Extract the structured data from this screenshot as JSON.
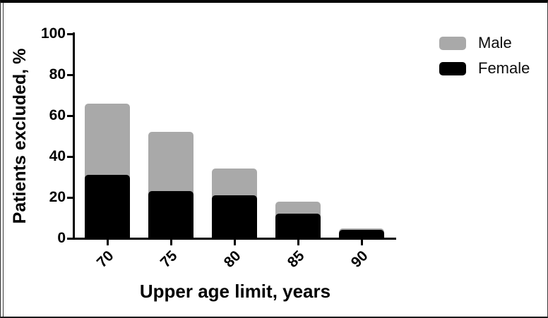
{
  "figure": {
    "ylabel": "Patients excluded, %",
    "xlabel": "Upper age limit, years"
  },
  "legend": {
    "items": [
      {
        "label": "Male",
        "color": "#a9a9a9"
      },
      {
        "label": "Female",
        "color": "#000000"
      }
    ]
  },
  "chart_data": {
    "type": "bar",
    "stacked": true,
    "title": "",
    "xlabel": "Upper age limit, years",
    "ylabel": "Patients excluded, %",
    "categories": [
      "70",
      "75",
      "80",
      "85",
      "90"
    ],
    "series": [
      {
        "name": "Male",
        "color": "#a9a9a9",
        "values": [
          35,
          29,
          13,
          6,
          1
        ]
      },
      {
        "name": "Female",
        "color": "#000000",
        "values": [
          31,
          23,
          21,
          12,
          4
        ]
      }
    ],
    "stack_order_bottom_to_top": [
      "Female",
      "Male"
    ],
    "stack_totals": [
      66,
      52,
      34,
      18,
      5
    ],
    "ylim": [
      0,
      100
    ],
    "yticks": [
      0,
      20,
      40,
      60,
      80,
      100
    ],
    "grid": false,
    "legend_position": "top-right",
    "x_tick_label_rotation_deg": -45,
    "bar_corner_radius": "rounded-top"
  }
}
